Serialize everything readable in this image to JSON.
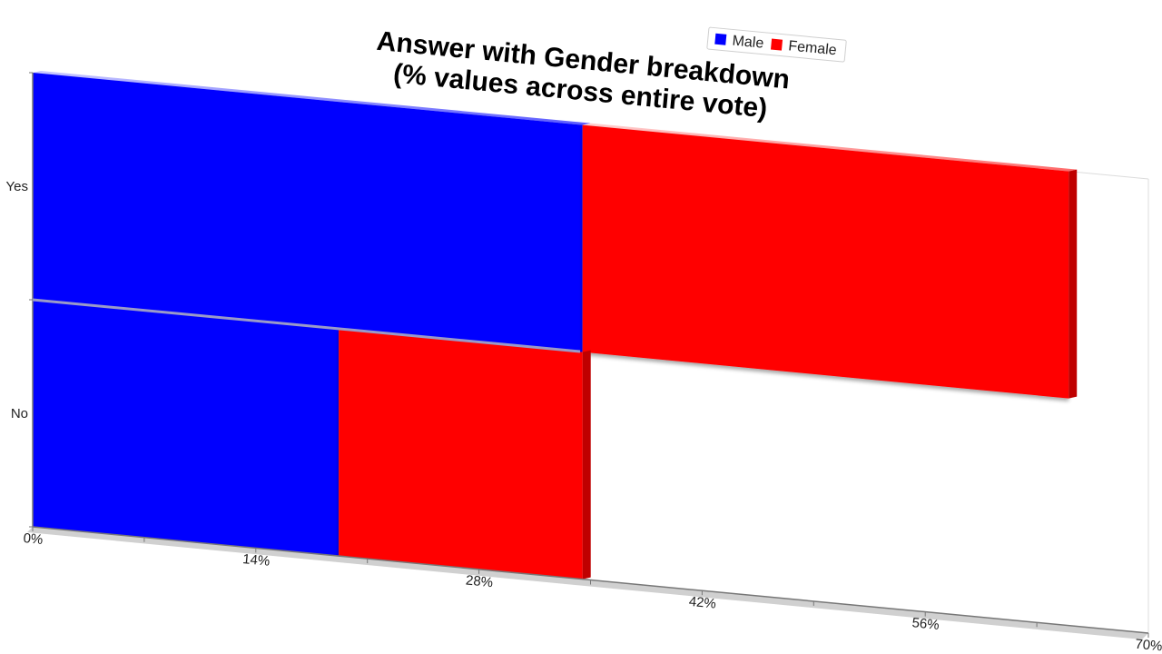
{
  "chart_data": {
    "type": "bar",
    "orientation": "horizontal",
    "stacked": true,
    "title_lines": [
      "Answer with Gender breakdown",
      "(% values across entire vote)"
    ],
    "categories": [
      "Yes",
      "No"
    ],
    "series": [
      {
        "name": "Male",
        "color": "#0000ff",
        "values": [
          34.5,
          19.2
        ]
      },
      {
        "name": "Female",
        "color": "#ff0000",
        "values": [
          30.5,
          15.3
        ]
      }
    ],
    "x_ticks": [
      "0%",
      "14%",
      "28%",
      "42%",
      "56%",
      "70%"
    ],
    "xlim": [
      0,
      70
    ],
    "legend_placement": "top-right",
    "grid": false
  }
}
